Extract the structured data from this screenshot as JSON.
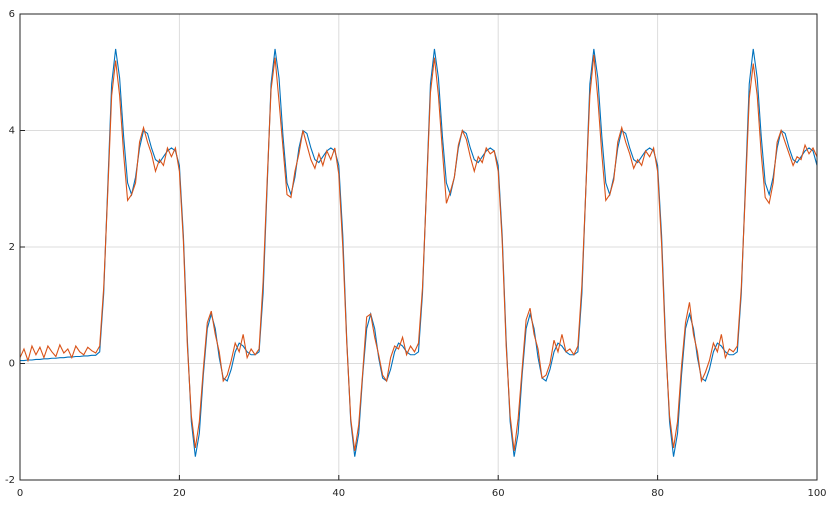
{
  "chart_data": {
    "type": "line",
    "x": [
      0,
      0.5,
      1,
      1.5,
      2,
      2.5,
      3,
      3.5,
      4,
      4.5,
      5,
      5.5,
      6,
      6.5,
      7,
      7.5,
      8,
      8.5,
      9,
      9.5,
      10,
      10.5,
      11,
      11.5,
      12,
      12.5,
      13,
      13.5,
      14,
      14.5,
      15,
      15.5,
      16,
      16.5,
      17,
      17.5,
      18,
      18.5,
      19,
      19.5,
      20,
      20.5,
      21,
      21.5,
      22,
      22.5,
      23,
      23.5,
      24,
      24.5,
      25,
      25.5,
      26,
      26.5,
      27,
      27.5,
      28,
      28.5,
      29,
      29.5,
      30,
      30.5,
      31,
      31.5,
      32,
      32.5,
      33,
      33.5,
      34,
      34.5,
      35,
      35.5,
      36,
      36.5,
      37,
      37.5,
      38,
      38.5,
      39,
      39.5,
      40,
      40.5,
      41,
      41.5,
      42,
      42.5,
      43,
      43.5,
      44,
      44.5,
      45,
      45.5,
      46,
      46.5,
      47,
      47.5,
      48,
      48.5,
      49,
      49.5,
      50,
      50.5,
      51,
      51.5,
      52,
      52.5,
      53,
      53.5,
      54,
      54.5,
      55,
      55.5,
      56,
      56.5,
      57,
      57.5,
      58,
      58.5,
      59,
      59.5,
      60,
      60.5,
      61,
      61.5,
      62,
      62.5,
      63,
      63.5,
      64,
      64.5,
      65,
      65.5,
      66,
      66.5,
      67,
      67.5,
      68,
      68.5,
      69,
      69.5,
      70,
      70.5,
      71,
      71.5,
      72,
      72.5,
      73,
      73.5,
      74,
      74.5,
      75,
      75.5,
      76,
      76.5,
      77,
      77.5,
      78,
      78.5,
      79,
      79.5,
      80,
      80.5,
      81,
      81.5,
      82,
      82.5,
      83,
      83.5,
      84,
      84.5,
      85,
      85.5,
      86,
      86.5,
      87,
      87.5,
      88,
      88.5,
      89,
      89.5,
      90,
      90.5,
      91,
      91.5,
      92,
      92.5,
      93,
      93.5,
      94,
      94.5,
      95,
      95.5,
      96,
      96.5,
      97,
      97.5,
      98,
      98.5,
      99,
      99.5,
      100
    ],
    "series": [
      {
        "color": "#0072bd",
        "values": [
          0.05,
          0.05,
          0.06,
          0.06,
          0.07,
          0.07,
          0.08,
          0.08,
          0.09,
          0.09,
          0.1,
          0.1,
          0.11,
          0.11,
          0.12,
          0.12,
          0.13,
          0.13,
          0.14,
          0.14,
          0.2,
          1.2,
          3.0,
          4.8,
          5.4,
          4.9,
          3.9,
          3.1,
          2.9,
          3.2,
          3.7,
          4.0,
          3.95,
          3.7,
          3.5,
          3.45,
          3.55,
          3.65,
          3.7,
          3.65,
          3.4,
          2.2,
          0.4,
          -1.0,
          -1.6,
          -1.2,
          -0.2,
          0.6,
          0.85,
          0.6,
          0.1,
          -0.25,
          -0.3,
          -0.1,
          0.2,
          0.35,
          0.3,
          0.2,
          0.15,
          0.15,
          0.2,
          1.2,
          3.0,
          4.8,
          5.4,
          4.9,
          3.9,
          3.1,
          2.9,
          3.2,
          3.7,
          4.0,
          3.95,
          3.7,
          3.5,
          3.45,
          3.55,
          3.65,
          3.7,
          3.65,
          3.4,
          2.2,
          0.4,
          -1.0,
          -1.6,
          -1.2,
          -0.2,
          0.6,
          0.85,
          0.6,
          0.1,
          -0.25,
          -0.3,
          -0.1,
          0.2,
          0.35,
          0.3,
          0.2,
          0.15,
          0.15,
          0.2,
          1.2,
          3.0,
          4.8,
          5.4,
          4.9,
          3.9,
          3.1,
          2.9,
          3.2,
          3.7,
          4.0,
          3.95,
          3.7,
          3.5,
          3.45,
          3.55,
          3.65,
          3.7,
          3.65,
          3.4,
          2.2,
          0.4,
          -1.0,
          -1.6,
          -1.2,
          -0.2,
          0.6,
          0.85,
          0.6,
          0.1,
          -0.25,
          -0.3,
          -0.1,
          0.2,
          0.35,
          0.3,
          0.2,
          0.15,
          0.15,
          0.2,
          1.2,
          3.0,
          4.8,
          5.4,
          4.9,
          3.9,
          3.1,
          2.9,
          3.2,
          3.7,
          4.0,
          3.95,
          3.7,
          3.5,
          3.45,
          3.55,
          3.65,
          3.7,
          3.65,
          3.4,
          2.2,
          0.4,
          -1.0,
          -1.6,
          -1.2,
          -0.2,
          0.6,
          0.85,
          0.6,
          0.1,
          -0.25,
          -0.3,
          -0.1,
          0.2,
          0.35,
          0.3,
          0.2,
          0.15,
          0.15,
          0.2,
          1.2,
          3.0,
          4.8,
          5.4,
          4.9,
          3.9,
          3.1,
          2.9,
          3.2,
          3.7,
          4.0,
          3.95,
          3.7,
          3.5,
          3.45,
          3.55,
          3.65,
          3.7,
          3.65,
          3.4
        ]
      },
      {
        "color": "#d95319",
        "values": [
          0.1,
          0.25,
          0.05,
          0.3,
          0.15,
          0.28,
          0.1,
          0.3,
          0.2,
          0.12,
          0.32,
          0.18,
          0.25,
          0.1,
          0.3,
          0.2,
          0.15,
          0.28,
          0.22,
          0.18,
          0.3,
          1.3,
          2.9,
          4.6,
          5.2,
          4.6,
          3.6,
          2.8,
          2.9,
          3.1,
          3.8,
          4.05,
          3.8,
          3.6,
          3.3,
          3.5,
          3.4,
          3.7,
          3.55,
          3.7,
          3.3,
          2.1,
          0.3,
          -0.9,
          -1.45,
          -1.0,
          -0.1,
          0.7,
          0.9,
          0.5,
          0.2,
          -0.3,
          -0.2,
          0.05,
          0.35,
          0.2,
          0.5,
          0.1,
          0.25,
          0.15,
          0.25,
          1.4,
          3.1,
          4.7,
          5.25,
          4.5,
          3.7,
          2.9,
          2.85,
          3.3,
          3.6,
          4.0,
          3.75,
          3.5,
          3.35,
          3.6,
          3.4,
          3.65,
          3.5,
          3.7,
          3.25,
          2.0,
          0.35,
          -0.95,
          -1.5,
          -1.05,
          -0.15,
          0.8,
          0.85,
          0.45,
          0.15,
          -0.2,
          -0.3,
          0.1,
          0.3,
          0.25,
          0.45,
          0.15,
          0.3,
          0.2,
          0.35,
          1.3,
          2.95,
          4.65,
          5.25,
          4.6,
          3.65,
          2.75,
          2.95,
          3.2,
          3.75,
          4.0,
          3.85,
          3.55,
          3.3,
          3.55,
          3.45,
          3.7,
          3.6,
          3.65,
          3.3,
          2.1,
          0.3,
          -0.9,
          -1.5,
          -0.95,
          -0.1,
          0.75,
          0.95,
          0.5,
          0.25,
          -0.25,
          -0.2,
          0.0,
          0.4,
          0.2,
          0.5,
          0.2,
          0.25,
          0.15,
          0.3,
          1.35,
          3.0,
          4.6,
          5.3,
          4.55,
          3.6,
          2.8,
          2.9,
          3.15,
          3.8,
          4.05,
          3.8,
          3.6,
          3.35,
          3.5,
          3.4,
          3.65,
          3.55,
          3.7,
          3.3,
          2.05,
          0.3,
          -0.9,
          -1.45,
          -1.0,
          -0.05,
          0.7,
          1.05,
          0.5,
          0.2,
          -0.3,
          -0.15,
          0.05,
          0.35,
          0.2,
          0.5,
          0.1,
          0.25,
          0.2,
          0.3,
          1.3,
          2.9,
          4.55,
          5.15,
          4.6,
          3.6,
          2.85,
          2.75,
          3.1,
          3.8,
          4.0,
          3.8,
          3.6,
          3.4,
          3.55,
          3.5,
          3.75,
          3.6,
          3.7,
          3.55
        ]
      }
    ],
    "xlim": [
      0,
      100
    ],
    "xticks": [
      0,
      20,
      40,
      60,
      80,
      100
    ],
    "ylim": [
      -2,
      6
    ],
    "yticks": [
      -2,
      0,
      2,
      4,
      6
    ],
    "grid": true
  }
}
